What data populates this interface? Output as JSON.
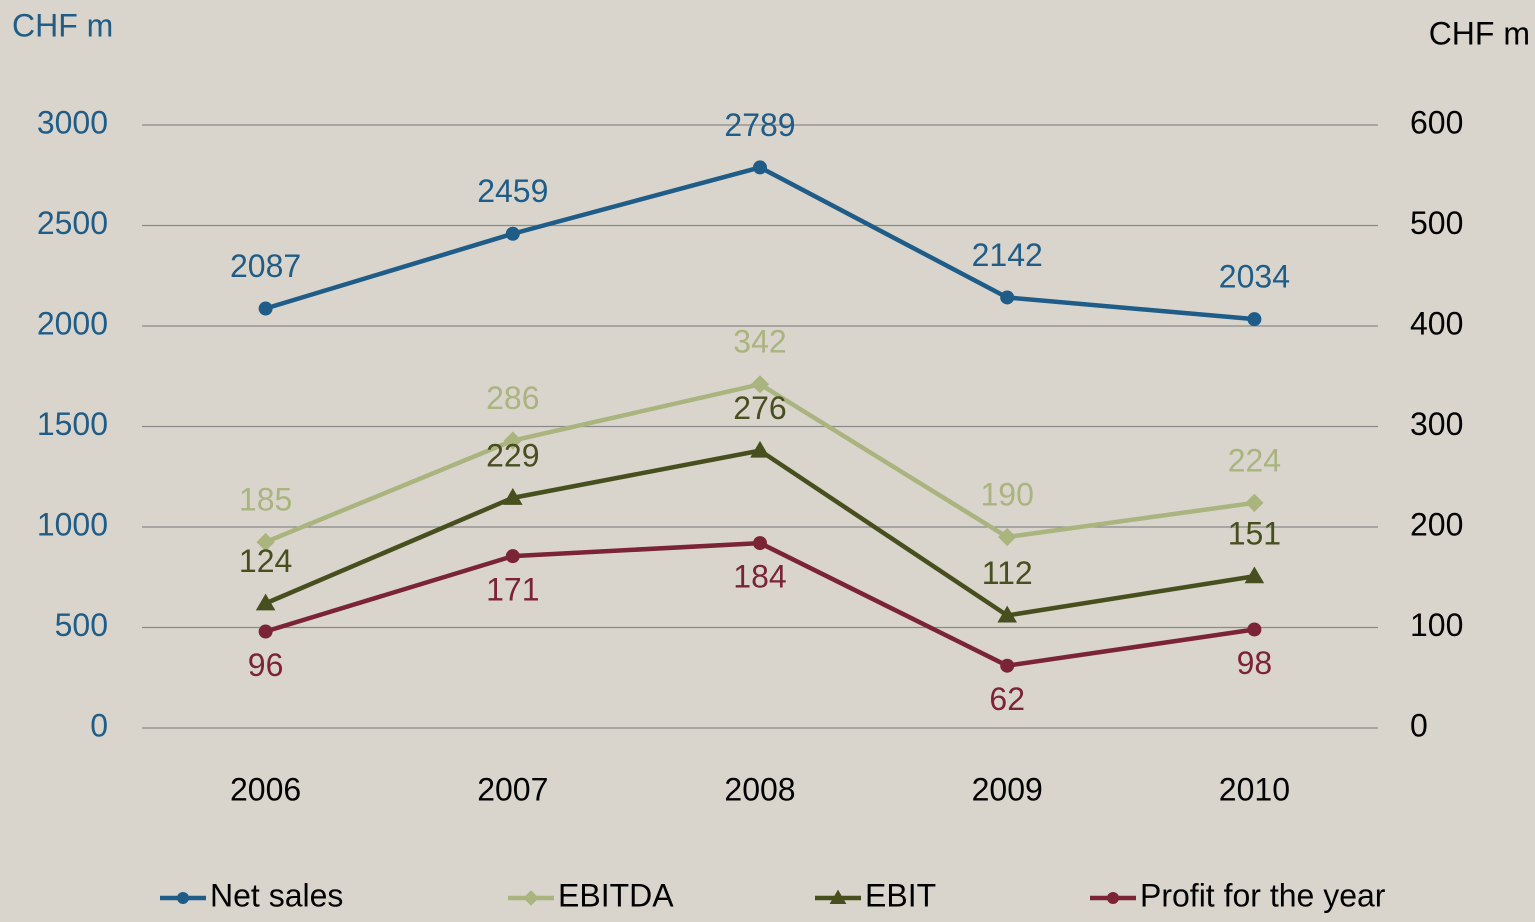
{
  "chart_data": {
    "type": "line",
    "y_label": "CHF m",
    "y2_label": "CHF m",
    "categories": [
      "2006",
      "2007",
      "2008",
      "2009",
      "2010"
    ],
    "series": [
      {
        "name": "Net sales",
        "color": "#1f5c87",
        "marker": "circle",
        "axis": "y",
        "values": [
          2087,
          2459,
          2789,
          2142,
          2034
        ]
      },
      {
        "name": "EBITDA",
        "color": "#a9b47f",
        "marker": "diamond",
        "axis": "y2",
        "values": [
          185,
          286,
          342,
          190,
          224
        ]
      },
      {
        "name": "EBIT",
        "color": "#474f1e",
        "marker": "triangle",
        "axis": "y2",
        "values": [
          124,
          229,
          276,
          112,
          151
        ]
      },
      {
        "name": "Profit for the year",
        "color": "#7a2436",
        "marker": "circle",
        "axis": "y2",
        "values": [
          96,
          171,
          184,
          62,
          98
        ]
      }
    ],
    "ylim": [
      0,
      3000
    ],
    "yticks": [
      0,
      500,
      1000,
      1500,
      2000,
      2500,
      3000
    ],
    "y2lim": [
      0,
      600
    ],
    "y2ticks": [
      0,
      100,
      200,
      300,
      400,
      500,
      600
    ],
    "grid": true,
    "legend": "bottom"
  }
}
